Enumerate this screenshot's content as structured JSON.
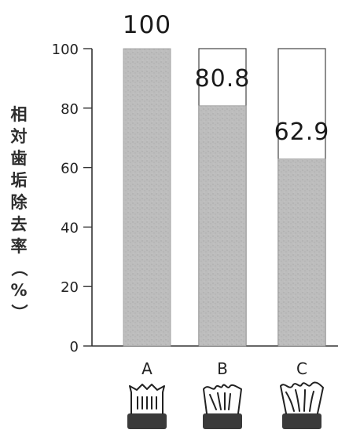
{
  "chart_data": {
    "type": "bar",
    "categories": [
      "A",
      "B",
      "C"
    ],
    "values": [
      100,
      80.8,
      62.9
    ],
    "value_labels": [
      "100",
      "80.8",
      "62.9"
    ],
    "ylabel": "相対歯垢除去率（%）",
    "yticks": [
      0,
      20,
      40,
      60,
      80,
      100
    ],
    "ylim": [
      0,
      100
    ],
    "bar_fill": "#bdbdbd",
    "outline_color": "#444444",
    "grid": false,
    "icons": [
      "toothbrush-a-icon",
      "toothbrush-b-icon",
      "toothbrush-c-icon"
    ]
  }
}
